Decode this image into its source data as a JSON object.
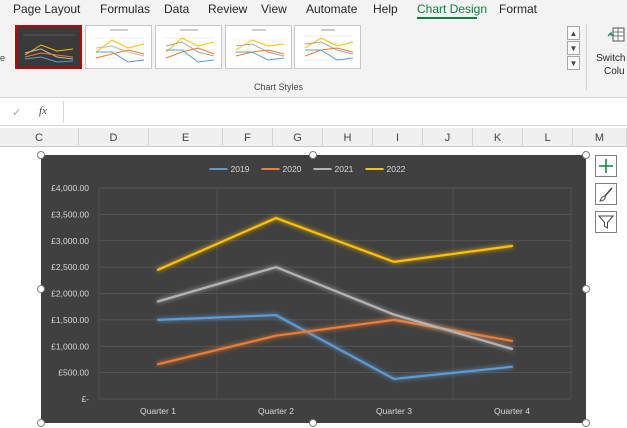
{
  "ribbon_tabs": [
    {
      "label": "Page Layout",
      "active": false
    },
    {
      "label": "Formulas",
      "active": false
    },
    {
      "label": "Data",
      "active": false
    },
    {
      "label": "Review",
      "active": false
    },
    {
      "label": "View",
      "active": false
    },
    {
      "label": "Automate",
      "active": false
    },
    {
      "label": "Help",
      "active": false
    },
    {
      "label": "Chart Design",
      "active": true
    },
    {
      "label": "Format",
      "active": false
    }
  ],
  "ribbon": {
    "group_label": "Chart Styles",
    "switch_label_line1": "Switch R",
    "switch_label_line2": "Colu",
    "left_edge_text": "e"
  },
  "formula_bar": {
    "fx_label": "fx",
    "check_icon": "checkmark-icon",
    "value": ""
  },
  "columns": [
    "C",
    "D",
    "E",
    "F",
    "G",
    "H",
    "I",
    "J",
    "K",
    "L",
    "M"
  ],
  "chart_data": {
    "type": "line",
    "categories": [
      "Quarter 1",
      "Quarter 2",
      "Quarter 3",
      "Quarter 4"
    ],
    "series": [
      {
        "name": "2019",
        "color": "#5b9bd5",
        "values": [
          1500,
          1590,
          380,
          610
        ]
      },
      {
        "name": "2020",
        "color": "#ed7d31",
        "values": [
          660,
          1200,
          1500,
          1100
        ]
      },
      {
        "name": "2021",
        "color": "#b4b4b4",
        "values": [
          1850,
          2500,
          1600,
          950
        ]
      },
      {
        "name": "2022",
        "color": "#ffc000",
        "values": [
          2450,
          3430,
          2600,
          2900
        ]
      }
    ],
    "yticks": [
      "£-",
      "£500.00",
      "£1,000.00",
      "£1,500.00",
      "£2,000.00",
      "£2,500.00",
      "£3,000.00",
      "£3,500.00",
      "£4,000.00"
    ],
    "ylim": [
      0,
      4000
    ],
    "legend_position": "top",
    "grid": true,
    "background": "#404040"
  },
  "side_buttons": [
    "chart-elements-plus-icon",
    "chart-styles-brush-icon",
    "chart-filter-funnel-icon"
  ]
}
